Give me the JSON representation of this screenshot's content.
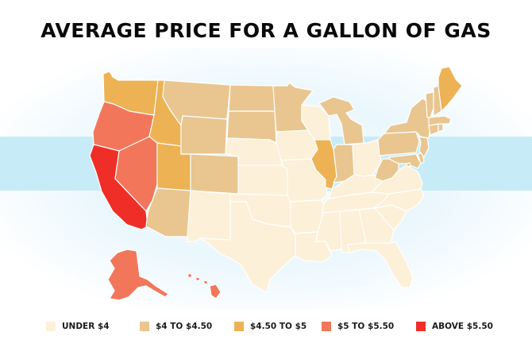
{
  "title": "AVERAGE PRICE FOR A GALLON OF GAS",
  "colors": {
    "under_4": "#fdf0d8",
    "4_to_4_50": "#e9c690",
    "4_50_to_5": "#edb253",
    "5_to_5_50": "#f2775a",
    "above_5_50": "#ef2f27",
    "band": "#c7ecf8"
  },
  "legend": [
    {
      "label": "UNDER $4",
      "color": "#fdf0d8"
    },
    {
      "label": "$4 TO $4.50",
      "color": "#e9c690"
    },
    {
      "label": "$4.50 TO $5",
      "color": "#edb253"
    },
    {
      "label": "$5 TO $5.50",
      "color": "#f2775a"
    },
    {
      "label": "ABOVE $5.50",
      "color": "#ef2f27"
    }
  ],
  "price_categories": {
    "CA": "above_5_50",
    "WA": "4_50_to_5",
    "ID": "4_50_to_5",
    "UT": "4_50_to_5",
    "IL": "4_50_to_5",
    "ME": "4_50_to_5",
    "OR": "5_to_5_50",
    "NV": "5_to_5_50",
    "AK": "5_to_5_50",
    "HI": "5_to_5_50",
    "MT": "4_to_4_50",
    "WY": "4_to_4_50",
    "CO": "4_to_4_50",
    "AZ": "4_to_4_50",
    "ND": "4_to_4_50",
    "SD": "4_to_4_50",
    "MN": "4_to_4_50",
    "MI": "4_to_4_50",
    "IN": "4_to_4_50",
    "PA": "4_to_4_50",
    "NY": "4_to_4_50",
    "WV": "4_to_4_50",
    "NJ": "4_to_4_50",
    "VT": "4_to_4_50",
    "NH": "4_to_4_50",
    "MA": "4_to_4_50",
    "CT": "4_to_4_50",
    "RI": "4_to_4_50",
    "MD": "4_to_4_50",
    "DE": "4_to_4_50",
    "DC": "4_to_4_50",
    "NM": "under_4",
    "NE": "under_4",
    "KS": "under_4",
    "OK": "under_4",
    "TX": "under_4",
    "IA": "under_4",
    "MO": "under_4",
    "AR": "under_4",
    "LA": "under_4",
    "WI": "under_4",
    "MS": "under_4",
    "AL": "under_4",
    "TN": "under_4",
    "KY": "under_4",
    "OH": "under_4",
    "GA": "under_4",
    "FL": "under_4",
    "SC": "under_4",
    "NC": "under_4",
    "VA": "under_4"
  }
}
